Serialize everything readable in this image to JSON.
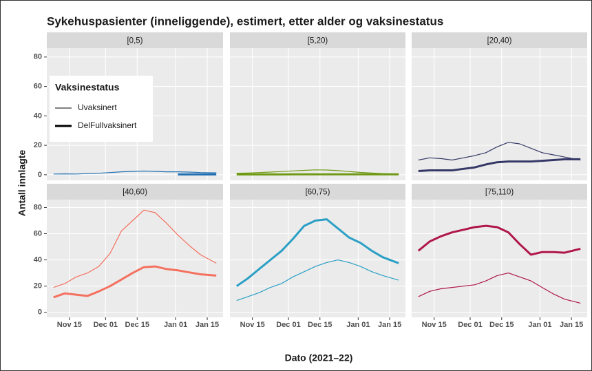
{
  "chart_data": {
    "type": "line",
    "title": "Sykehuspasienter (inneliggende), estimert, etter alder og vaksinestatus",
    "x_label": "Dato (2021–22)",
    "y_label": "Antall innlagte",
    "legend_title": "Vaksinestatus",
    "series_names": [
      "Uvaksinert",
      "DelFullvaksinert"
    ],
    "grid": true,
    "x": [
      "2021-11-08",
      "2021-11-13",
      "2021-11-18",
      "2021-11-23",
      "2021-11-28",
      "2021-12-03",
      "2021-12-08",
      "2021-12-13",
      "2021-12-18",
      "2021-12-23",
      "2021-12-28",
      "2022-01-02",
      "2022-01-07",
      "2022-01-12",
      "2022-01-19"
    ],
    "xlim": [
      "2021-11-05",
      "2022-01-22"
    ],
    "xticks": [
      {
        "value": "2021-11-15",
        "label": "Nov 15"
      },
      {
        "value": "2021-12-01",
        "label": "Dec 01"
      },
      {
        "value": "2021-12-15",
        "label": "Dec 15"
      },
      {
        "value": "2022-01-01",
        "label": "Jan 01"
      },
      {
        "value": "2022-01-15",
        "label": "Jan 15"
      }
    ],
    "ylim": [
      -3.8,
      86
    ],
    "yticks": [
      0,
      20,
      40,
      60,
      80
    ],
    "panels": [
      {
        "title": "[0,5)",
        "color": "#1f6fb2",
        "values": [
          [
            0.5,
            0.6,
            0.5,
            0.8,
            1.0,
            1.5,
            2.0,
            2.3,
            2.5,
            2.3,
            2.0,
            2.0,
            1.8,
            1.5,
            1.3
          ],
          [
            null,
            null,
            null,
            null,
            null,
            null,
            null,
            null,
            null,
            null,
            null,
            0.2,
            0.2,
            0.2,
            0.2
          ]
        ]
      },
      {
        "title": "[5,20)",
        "color": "#6f9a14",
        "values": [
          [
            1.0,
            1.2,
            1.5,
            1.8,
            2.2,
            2.6,
            3.0,
            3.3,
            3.2,
            2.8,
            2.2,
            1.6,
            1.2,
            0.8,
            0.5
          ],
          [
            0.2,
            0.2,
            0.2,
            0.2,
            0.2,
            0.3,
            0.3,
            0.3,
            0.3,
            0.3,
            0.3,
            0.3,
            0.3,
            0.3,
            0.3
          ]
        ]
      },
      {
        "title": "[20,40)",
        "color": "#353866",
        "values": [
          [
            10,
            11.5,
            11,
            10,
            11.5,
            13,
            15,
            19,
            22,
            21,
            18,
            15,
            13.5,
            12,
            10
          ],
          [
            2.5,
            3,
            3,
            3,
            4,
            5,
            7,
            8.5,
            9,
            9,
            9,
            9.5,
            10,
            10.5,
            10.5
          ]
        ]
      },
      {
        "title": "[40,60)",
        "color": "#f4705f",
        "values": [
          [
            19,
            22,
            27,
            30,
            35,
            45,
            62,
            70,
            78,
            76,
            68,
            59,
            51,
            44,
            37.5
          ],
          [
            11.5,
            14.5,
            13.5,
            12.5,
            16,
            20,
            25,
            30,
            34.5,
            35,
            33,
            32,
            30.5,
            29,
            28
          ]
        ]
      },
      {
        "title": "[60,75)",
        "color": "#2a9fc5",
        "values": [
          [
            9,
            12,
            15,
            19,
            22,
            27,
            31,
            35,
            38,
            40,
            38,
            35,
            31,
            28,
            24.5
          ],
          [
            20,
            26,
            33,
            40,
            47,
            56,
            66,
            70,
            71,
            64,
            57,
            53,
            47,
            42,
            37.5
          ]
        ]
      },
      {
        "title": "[75,110)",
        "color": "#b0164a",
        "values": [
          [
            12,
            16,
            18,
            19,
            20,
            21,
            24,
            28,
            30,
            27,
            24,
            19,
            14,
            10,
            7
          ],
          [
            47,
            54,
            58,
            61,
            63,
            65,
            66,
            65,
            61,
            52,
            44,
            46,
            46,
            45.5,
            48.5
          ]
        ]
      }
    ]
  }
}
